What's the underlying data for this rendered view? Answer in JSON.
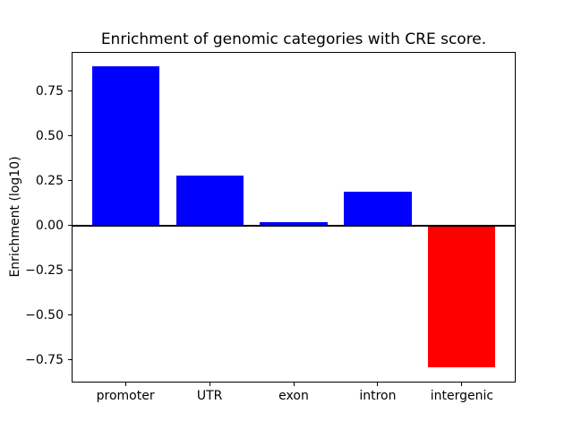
{
  "chart_data": {
    "type": "bar",
    "title": "Enrichment of genomic categories with CRE score.",
    "xlabel": "",
    "ylabel": "Enrichment (log10)",
    "categories": [
      "promoter",
      "UTR",
      "exon",
      "intron",
      "intergenic"
    ],
    "values": [
      0.89,
      0.28,
      0.02,
      0.19,
      -0.79
    ],
    "bar_colors": [
      "#0000ff",
      "#0000ff",
      "#0000ff",
      "#0000ff",
      "#ff0000"
    ],
    "positive_color": "#0000ff",
    "negative_color": "#ff0000",
    "yticks": {
      "values": [
        0.75,
        0.5,
        0.25,
        0.0,
        -0.25,
        -0.5,
        -0.75
      ],
      "labels": [
        "0.75",
        "0.50",
        "0.25",
        "0.00",
        "−0.25",
        "−0.50",
        "−0.75"
      ]
    },
    "xlim": [
      -0.64,
      4.64
    ],
    "ylim": [
      -0.8775,
      0.9675
    ],
    "bar_width_fraction": 0.8,
    "zero_line": true,
    "grid": false,
    "legend": null,
    "background_color": "#ffffff",
    "axes_color": "#000000"
  }
}
